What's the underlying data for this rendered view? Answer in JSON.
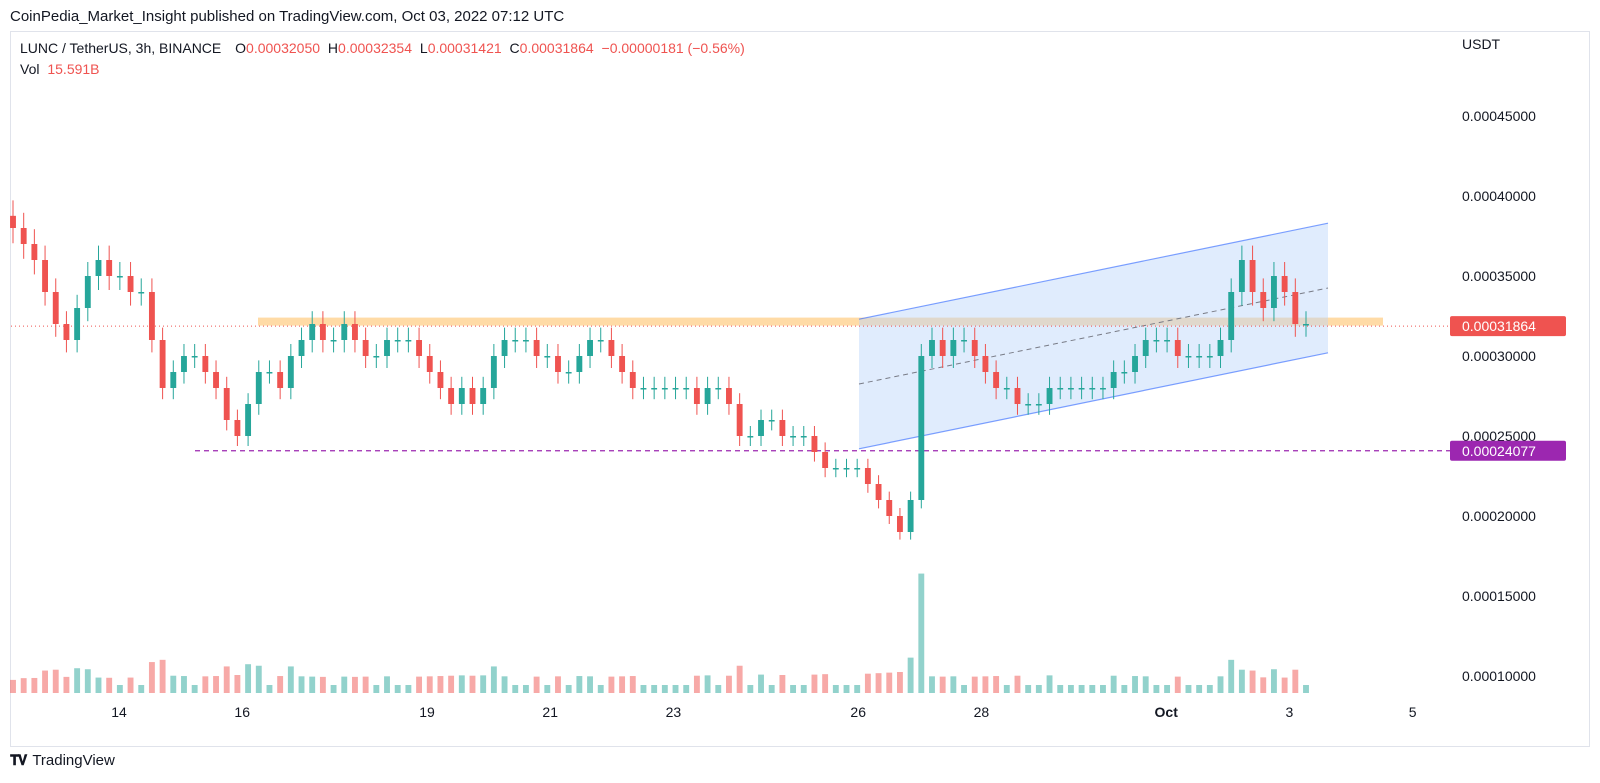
{
  "header": {
    "published": "CoinPedia_Market_Insight published on TradingView.com, Oct 03, 2022 07:12 UTC"
  },
  "legend": {
    "symbol": "LUNC / TetherUS, 3h, BINANCE",
    "o_label": "O",
    "o_value": "0.00032050",
    "h_label": "H",
    "h_value": "0.00032354",
    "l_label": "L",
    "l_value": "0.00031421",
    "c_label": "C",
    "c_value": "0.00031864",
    "change": "−0.00000181 (−0.56%)",
    "vol_label": "Vol",
    "vol_value": "15.591B"
  },
  "footer": {
    "brand": "TradingView"
  },
  "colors": {
    "up": "#26a69a",
    "down": "#ef5350",
    "channel": "#2962ff",
    "zone": "#ffcc80",
    "support": "#9c27b0"
  },
  "chart_data": {
    "type": "candlestick",
    "currency": "USDT",
    "y_ticks": [
      "0.00045000",
      "0.00040000",
      "0.00035000",
      "0.00030000",
      "0.00025000",
      "0.00020000",
      "0.00015000",
      "0.00010000"
    ],
    "x_ticks": [
      "14",
      "16",
      "19",
      "21",
      "23",
      "26",
      "28",
      "Oct",
      "3",
      "5"
    ],
    "last_price_label": "0.00031864",
    "support_label": "0.00024077",
    "last_price": 0.00031864,
    "support_level": 0.00024077,
    "resistance_zone": [
      0.000319,
      0.000324
    ],
    "channel": {
      "start_date": "Sep 26",
      "end_date": "Oct 3",
      "upper": [
        0.000323,
        0.000383
      ],
      "lower": [
        0.000242,
        0.000302
      ]
    },
    "closes": [
      0.00038,
      0.00037,
      0.00036,
      0.00034,
      0.00032,
      0.00031,
      0.00033,
      0.00035,
      0.00036,
      0.00035,
      0.00035,
      0.00034,
      0.00034,
      0.00031,
      0.00028,
      0.00029,
      0.0003,
      0.0003,
      0.00029,
      0.00028,
      0.00026,
      0.00025,
      0.00027,
      0.00029,
      0.00029,
      0.00028,
      0.0003,
      0.00031,
      0.00032,
      0.00031,
      0.00031,
      0.00032,
      0.00031,
      0.0003,
      0.0003,
      0.00031,
      0.00031,
      0.00031,
      0.0003,
      0.00029,
      0.00028,
      0.00027,
      0.00028,
      0.00027,
      0.00028,
      0.0003,
      0.00031,
      0.00031,
      0.00031,
      0.0003,
      0.0003,
      0.00029,
      0.00029,
      0.0003,
      0.00031,
      0.00031,
      0.0003,
      0.00029,
      0.00028,
      0.00028,
      0.00028,
      0.00028,
      0.00028,
      0.00028,
      0.00027,
      0.00028,
      0.00028,
      0.00027,
      0.00025,
      0.00025,
      0.00026,
      0.00026,
      0.00025,
      0.00025,
      0.00025,
      0.00024,
      0.00023,
      0.00023,
      0.00023,
      0.00023,
      0.00022,
      0.00021,
      0.0002,
      0.00019,
      0.00021,
      0.0003,
      0.00031,
      0.0003,
      0.00031,
      0.00031,
      0.0003,
      0.00029,
      0.00028,
      0.00028,
      0.00027,
      0.00027,
      0.00027,
      0.00028,
      0.00028,
      0.00028,
      0.00028,
      0.00028,
      0.00028,
      0.00029,
      0.00029,
      0.0003,
      0.00031,
      0.00031,
      0.00031,
      0.0003,
      0.0003,
      0.0003,
      0.0003,
      0.00031,
      0.00034,
      0.00036,
      0.00034,
      0.00033,
      0.00035,
      0.00034,
      0.00032,
      0.00032
    ]
  }
}
